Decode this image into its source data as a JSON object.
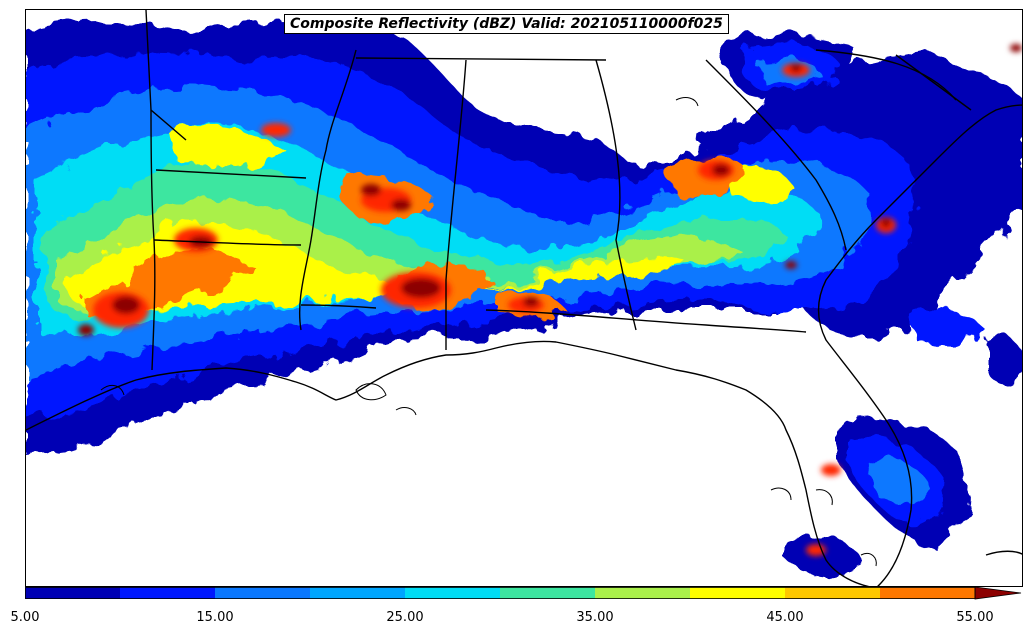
{
  "title": "Composite Reflectivity (dBZ) Valid: 202105110000f025",
  "colorbar": {
    "colors": [
      "#0000b4",
      "#0018ff",
      "#0a78ff",
      "#00a6ff",
      "#00ddf5",
      "#3ce6a0",
      "#aaf04a",
      "#ffff00",
      "#ffc800",
      "#ff7800",
      "#ff2800",
      "#c80000",
      "#8c0000"
    ],
    "levels": [
      5,
      10,
      15,
      20,
      25,
      30,
      35,
      40,
      45,
      50,
      55
    ],
    "tick_labels": [
      "5.00",
      "15.00",
      "25.00",
      "35.00",
      "45.00",
      "55.00"
    ],
    "extend": "max"
  }
}
